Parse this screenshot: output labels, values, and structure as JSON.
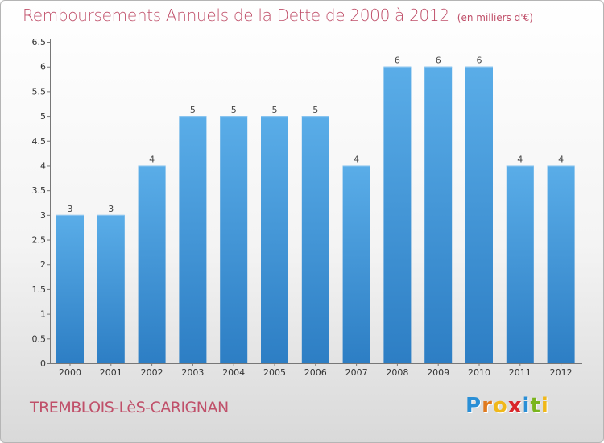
{
  "chart_data": {
    "type": "bar",
    "title": "Remboursements Annuels de la Dette de 2000 à 2012",
    "unit_note": "(en milliers d'€)",
    "categories": [
      "2000",
      "2001",
      "2002",
      "2003",
      "2004",
      "2005",
      "2006",
      "2007",
      "2008",
      "2009",
      "2010",
      "2011",
      "2012"
    ],
    "values": [
      3,
      3,
      4,
      5,
      5,
      5,
      5,
      4,
      6,
      6,
      6,
      4,
      4
    ],
    "value_labels": [
      "3",
      "3",
      "4",
      "5",
      "5",
      "5",
      "5",
      "4",
      "6",
      "6",
      "6",
      "4",
      "4"
    ],
    "ylim": [
      0,
      6.5
    ],
    "yticks": [
      0,
      0.5,
      1,
      1.5,
      2,
      2.5,
      3,
      3.5,
      4,
      4.5,
      5,
      5.5,
      6,
      6.5
    ],
    "ytick_labels": [
      "0",
      "0.5",
      "1",
      "1.5",
      "2",
      "2.5",
      "3",
      "3.5",
      "4",
      "4.5",
      "5",
      "5.5",
      "6",
      "6.5"
    ],
    "xlabel": "",
    "ylabel": "",
    "grid": false,
    "bar_color": "#4a9be0"
  },
  "footer": {
    "city": "TREMBLOIS-LèS-CARIGNAN",
    "brand_letters": [
      "P",
      "r",
      "o",
      "x",
      "i",
      "t",
      "i"
    ],
    "brand_colors": [
      "#2a8fd6",
      "#e07a1f",
      "#f0b81a",
      "#d9262a",
      "#2a8fd6",
      "#7ab51d",
      "#f0b81a"
    ]
  }
}
